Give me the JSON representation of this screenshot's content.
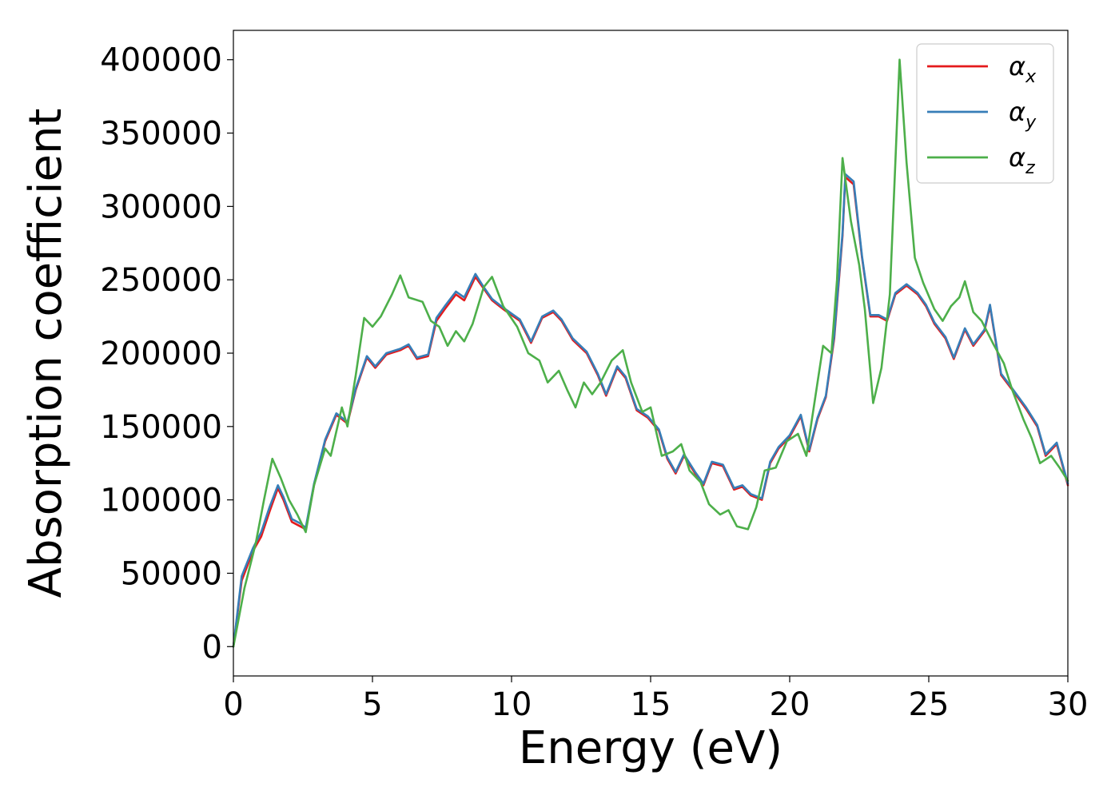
{
  "chart_data": {
    "type": "line",
    "xlabel": "Energy (eV)",
    "ylabel": "Absorption coefficient",
    "xlim": [
      0,
      30
    ],
    "ylim": [
      -20000,
      420000
    ],
    "xticks": [
      0,
      5,
      10,
      15,
      20,
      25,
      30
    ],
    "yticks": [
      0,
      50000,
      100000,
      150000,
      200000,
      250000,
      300000,
      350000,
      400000
    ],
    "grid": false,
    "legend_position": "top-right",
    "series": [
      {
        "name": "αx",
        "legend_symbol": "α",
        "legend_subscript": "x",
        "color": "#e41a1c",
        "points": [
          [
            0,
            0
          ],
          [
            0.3,
            45000
          ],
          [
            0.7,
            65000
          ],
          [
            1.0,
            75000
          ],
          [
            1.3,
            92000
          ],
          [
            1.6,
            108000
          ],
          [
            1.8,
            100000
          ],
          [
            2.1,
            85000
          ],
          [
            2.4,
            82000
          ],
          [
            2.6,
            80000
          ],
          [
            2.9,
            110000
          ],
          [
            3.3,
            140000
          ],
          [
            3.7,
            158000
          ],
          [
            4.1,
            152000
          ],
          [
            4.4,
            175000
          ],
          [
            4.8,
            197000
          ],
          [
            5.1,
            190000
          ],
          [
            5.5,
            199000
          ],
          [
            6.0,
            202000
          ],
          [
            6.3,
            205000
          ],
          [
            6.6,
            196000
          ],
          [
            7.0,
            198000
          ],
          [
            7.3,
            222000
          ],
          [
            7.6,
            230000
          ],
          [
            8.0,
            240000
          ],
          [
            8.3,
            236000
          ],
          [
            8.7,
            252000
          ],
          [
            9.0,
            244000
          ],
          [
            9.3,
            236000
          ],
          [
            9.7,
            230000
          ],
          [
            10.0,
            226000
          ],
          [
            10.3,
            222000
          ],
          [
            10.7,
            207000
          ],
          [
            11.1,
            224000
          ],
          [
            11.5,
            228000
          ],
          [
            11.8,
            222000
          ],
          [
            12.2,
            209000
          ],
          [
            12.7,
            200000
          ],
          [
            13.1,
            185000
          ],
          [
            13.4,
            171000
          ],
          [
            13.8,
            190000
          ],
          [
            14.1,
            183000
          ],
          [
            14.5,
            161000
          ],
          [
            14.9,
            156000
          ],
          [
            15.3,
            147000
          ],
          [
            15.6,
            128000
          ],
          [
            15.9,
            118000
          ],
          [
            16.2,
            130000
          ],
          [
            16.6,
            118000
          ],
          [
            16.9,
            110000
          ],
          [
            17.2,
            125000
          ],
          [
            17.6,
            123000
          ],
          [
            18.0,
            107000
          ],
          [
            18.3,
            109000
          ],
          [
            18.6,
            103000
          ],
          [
            19.0,
            100000
          ],
          [
            19.3,
            125000
          ],
          [
            19.6,
            135000
          ],
          [
            20.0,
            143000
          ],
          [
            20.4,
            157000
          ],
          [
            20.7,
            133000
          ],
          [
            21.0,
            155000
          ],
          [
            21.3,
            170000
          ],
          [
            21.6,
            210000
          ],
          [
            21.9,
            280000
          ],
          [
            22.0,
            320000
          ],
          [
            22.3,
            315000
          ],
          [
            22.6,
            265000
          ],
          [
            22.9,
            225000
          ],
          [
            23.2,
            225000
          ],
          [
            23.5,
            222000
          ],
          [
            23.8,
            240000
          ],
          [
            24.2,
            246000
          ],
          [
            24.6,
            240000
          ],
          [
            24.9,
            232000
          ],
          [
            25.2,
            220000
          ],
          [
            25.6,
            210000
          ],
          [
            25.9,
            196000
          ],
          [
            26.3,
            216000
          ],
          [
            26.6,
            205000
          ],
          [
            27.0,
            215000
          ],
          [
            27.2,
            232000
          ],
          [
            27.6,
            185000
          ],
          [
            28.0,
            175000
          ],
          [
            28.5,
            162000
          ],
          [
            28.9,
            150000
          ],
          [
            29.2,
            130000
          ],
          [
            29.6,
            138000
          ],
          [
            30.0,
            110000
          ]
        ]
      },
      {
        "name": "αy",
        "legend_symbol": "α",
        "legend_subscript": "y",
        "color": "#377eb8",
        "points": [
          [
            0,
            0
          ],
          [
            0.3,
            48000
          ],
          [
            0.7,
            67000
          ],
          [
            1.0,
            78000
          ],
          [
            1.3,
            95000
          ],
          [
            1.6,
            110000
          ],
          [
            1.8,
            102000
          ],
          [
            2.1,
            87000
          ],
          [
            2.4,
            84000
          ],
          [
            2.6,
            81000
          ],
          [
            2.9,
            111000
          ],
          [
            3.3,
            141000
          ],
          [
            3.7,
            159000
          ],
          [
            4.1,
            153000
          ],
          [
            4.4,
            176000
          ],
          [
            4.8,
            198000
          ],
          [
            5.1,
            191000
          ],
          [
            5.5,
            200000
          ],
          [
            6.0,
            203000
          ],
          [
            6.3,
            206000
          ],
          [
            6.6,
            197000
          ],
          [
            7.0,
            199000
          ],
          [
            7.3,
            224000
          ],
          [
            7.6,
            232000
          ],
          [
            8.0,
            242000
          ],
          [
            8.3,
            238000
          ],
          [
            8.7,
            254000
          ],
          [
            9.0,
            245000
          ],
          [
            9.3,
            237000
          ],
          [
            9.7,
            231000
          ],
          [
            10.0,
            227000
          ],
          [
            10.3,
            223000
          ],
          [
            10.7,
            208000
          ],
          [
            11.1,
            225000
          ],
          [
            11.5,
            229000
          ],
          [
            11.8,
            223000
          ],
          [
            12.2,
            210000
          ],
          [
            12.7,
            201000
          ],
          [
            13.1,
            186000
          ],
          [
            13.4,
            172000
          ],
          [
            13.8,
            191000
          ],
          [
            14.1,
            184000
          ],
          [
            14.5,
            162000
          ],
          [
            14.9,
            157000
          ],
          [
            15.3,
            148000
          ],
          [
            15.6,
            129000
          ],
          [
            15.9,
            119000
          ],
          [
            16.2,
            131000
          ],
          [
            16.6,
            119000
          ],
          [
            16.9,
            111000
          ],
          [
            17.2,
            126000
          ],
          [
            17.6,
            124000
          ],
          [
            18.0,
            108000
          ],
          [
            18.3,
            110000
          ],
          [
            18.6,
            104000
          ],
          [
            19.0,
            101000
          ],
          [
            19.3,
            126000
          ],
          [
            19.6,
            136000
          ],
          [
            20.0,
            144000
          ],
          [
            20.4,
            158000
          ],
          [
            20.7,
            134000
          ],
          [
            21.0,
            156000
          ],
          [
            21.3,
            171000
          ],
          [
            21.6,
            212000
          ],
          [
            21.9,
            282000
          ],
          [
            22.0,
            322000
          ],
          [
            22.3,
            317000
          ],
          [
            22.6,
            266000
          ],
          [
            22.9,
            226000
          ],
          [
            23.2,
            226000
          ],
          [
            23.5,
            223000
          ],
          [
            23.8,
            241000
          ],
          [
            24.2,
            247000
          ],
          [
            24.6,
            241000
          ],
          [
            24.9,
            233000
          ],
          [
            25.2,
            221000
          ],
          [
            25.6,
            211000
          ],
          [
            25.9,
            197000
          ],
          [
            26.3,
            217000
          ],
          [
            26.6,
            206000
          ],
          [
            27.0,
            216000
          ],
          [
            27.2,
            233000
          ],
          [
            27.6,
            186000
          ],
          [
            28.0,
            176000
          ],
          [
            28.5,
            163000
          ],
          [
            28.9,
            151000
          ],
          [
            29.2,
            131000
          ],
          [
            29.6,
            139000
          ],
          [
            30.0,
            111000
          ]
        ]
      },
      {
        "name": "αz",
        "legend_symbol": "α",
        "legend_subscript": "z",
        "color": "#4daf4a",
        "points": [
          [
            0,
            0
          ],
          [
            0.4,
            40000
          ],
          [
            0.8,
            70000
          ],
          [
            1.1,
            100000
          ],
          [
            1.4,
            128000
          ],
          [
            1.7,
            115000
          ],
          [
            2.0,
            100000
          ],
          [
            2.3,
            90000
          ],
          [
            2.6,
            78000
          ],
          [
            2.9,
            110000
          ],
          [
            3.3,
            135000
          ],
          [
            3.5,
            130000
          ],
          [
            3.9,
            163000
          ],
          [
            4.1,
            150000
          ],
          [
            4.4,
            185000
          ],
          [
            4.7,
            224000
          ],
          [
            5.0,
            218000
          ],
          [
            5.3,
            225000
          ],
          [
            5.7,
            240000
          ],
          [
            6.0,
            253000
          ],
          [
            6.3,
            238000
          ],
          [
            6.8,
            235000
          ],
          [
            7.1,
            222000
          ],
          [
            7.4,
            218000
          ],
          [
            7.7,
            205000
          ],
          [
            8.0,
            215000
          ],
          [
            8.3,
            208000
          ],
          [
            8.6,
            220000
          ],
          [
            9.0,
            245000
          ],
          [
            9.3,
            252000
          ],
          [
            9.7,
            232000
          ],
          [
            10.2,
            218000
          ],
          [
            10.6,
            200000
          ],
          [
            11.0,
            195000
          ],
          [
            11.3,
            180000
          ],
          [
            11.7,
            188000
          ],
          [
            12.0,
            175000
          ],
          [
            12.3,
            163000
          ],
          [
            12.6,
            180000
          ],
          [
            12.9,
            172000
          ],
          [
            13.2,
            180000
          ],
          [
            13.6,
            195000
          ],
          [
            14.0,
            202000
          ],
          [
            14.3,
            180000
          ],
          [
            14.7,
            160000
          ],
          [
            15.0,
            163000
          ],
          [
            15.4,
            130000
          ],
          [
            15.8,
            133000
          ],
          [
            16.1,
            138000
          ],
          [
            16.4,
            120000
          ],
          [
            16.8,
            112000
          ],
          [
            17.1,
            97000
          ],
          [
            17.5,
            90000
          ],
          [
            17.8,
            93000
          ],
          [
            18.1,
            82000
          ],
          [
            18.5,
            80000
          ],
          [
            18.8,
            95000
          ],
          [
            19.1,
            120000
          ],
          [
            19.5,
            122000
          ],
          [
            19.9,
            140000
          ],
          [
            20.3,
            145000
          ],
          [
            20.6,
            130000
          ],
          [
            21.0,
            180000
          ],
          [
            21.2,
            205000
          ],
          [
            21.5,
            200000
          ],
          [
            21.7,
            250000
          ],
          [
            21.9,
            333000
          ],
          [
            22.2,
            290000
          ],
          [
            22.5,
            260000
          ],
          [
            22.7,
            230000
          ],
          [
            23.0,
            166000
          ],
          [
            23.3,
            190000
          ],
          [
            23.6,
            240000
          ],
          [
            23.8,
            330000
          ],
          [
            23.95,
            400000
          ],
          [
            24.2,
            330000
          ],
          [
            24.5,
            265000
          ],
          [
            24.8,
            248000
          ],
          [
            25.2,
            230000
          ],
          [
            25.5,
            222000
          ],
          [
            25.8,
            232000
          ],
          [
            26.1,
            238000
          ],
          [
            26.3,
            249000
          ],
          [
            26.6,
            228000
          ],
          [
            26.9,
            222000
          ],
          [
            27.3,
            207000
          ],
          [
            27.7,
            193000
          ],
          [
            28.0,
            175000
          ],
          [
            28.4,
            155000
          ],
          [
            28.7,
            142000
          ],
          [
            29.0,
            125000
          ],
          [
            29.4,
            130000
          ],
          [
            29.7,
            122000
          ],
          [
            30.0,
            113000
          ]
        ]
      }
    ]
  }
}
